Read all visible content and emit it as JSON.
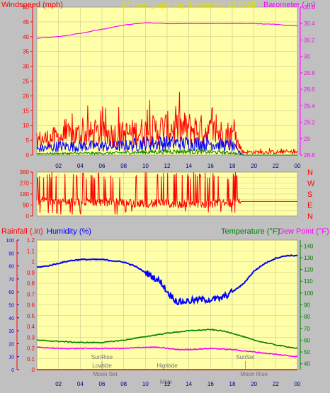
{
  "header": {
    "left_label": "Windspeed (mph)",
    "center_label": "24 hour graph day   September 13 2019",
    "right_label": "Barometer ( in)"
  },
  "colors": {
    "plot_bg": "#ffffa8",
    "grid": "#c8c890",
    "axis_red": "#ff0000",
    "magenta": "#ff00ff",
    "blue": "#0000ff",
    "green": "#008000",
    "yellow_text": "#e0e000"
  },
  "mid_labels": {
    "compass": [
      "N",
      "W",
      "S",
      "E",
      "N"
    ]
  },
  "bottom_header": {
    "rainfall": "Rainfall (.in)",
    "humidity": "Humidity (%)",
    "temperature": "Temperature (°F)",
    "dewpoint": "Dew Point (°F)"
  },
  "annotations": [
    {
      "text": "SunRise",
      "hour": 6.0,
      "row": 0
    },
    {
      "text": "Lowtide",
      "hour": 6.0,
      "row": 1
    },
    {
      "text": "Moon Set",
      "hour": 6.3,
      "row": 2
    },
    {
      "text": "Hightide",
      "hour": 12.0,
      "row": 1
    },
    {
      "text": "Mide",
      "hour": 11.9,
      "row": 3
    },
    {
      "text": "SunSet",
      "hour": 19.2,
      "row": 0
    },
    {
      "text": "Moon Rise",
      "hour": 20.0,
      "row": 2
    }
  ],
  "chart_data": [
    {
      "type": "line",
      "title": "24 hour graph day   September 13 2019",
      "x_ticks": [
        "02",
        "04",
        "06",
        "08",
        "10",
        "12",
        "14",
        "16",
        "18",
        "20",
        "22",
        "00"
      ],
      "xlim": [
        0,
        24
      ],
      "left_axis": {
        "label": "Windspeed (mph)",
        "ylim": [
          0,
          50
        ],
        "ticks": [
          0,
          5,
          10,
          15,
          20,
          25,
          30,
          35,
          40,
          45,
          50
        ]
      },
      "right_axis": {
        "label": "Barometer ( in)",
        "ylim": [
          28.8,
          30.6
        ],
        "ticks": [
          "28.8",
          "29",
          "29.2",
          "29.4",
          "29.6",
          "29.8",
          "30",
          "30.2",
          "30.4",
          "30.6"
        ]
      },
      "series": [
        {
          "name": "Barometer",
          "axis": "right",
          "color": "#ff00ff",
          "x": [
            0,
            2,
            4,
            6,
            8,
            10,
            12,
            14,
            16,
            18,
            20,
            22,
            24
          ],
          "values": [
            30.22,
            30.24,
            30.28,
            30.33,
            30.38,
            30.41,
            30.4,
            30.4,
            30.4,
            30.4,
            30.4,
            30.39,
            30.37
          ]
        },
        {
          "name": "Wind gust",
          "axis": "left",
          "color": "#ff0000",
          "style": "noisy",
          "x": [
            0,
            2,
            4,
            6,
            8,
            10,
            12,
            14,
            16,
            18,
            19,
            20,
            22,
            24
          ],
          "values": [
            5,
            6,
            7,
            7,
            7,
            8,
            9,
            9,
            8,
            7,
            1,
            1,
            1,
            1
          ]
        },
        {
          "name": "Wind speed",
          "axis": "left",
          "color": "#0000ff",
          "style": "noisy",
          "x": [
            0,
            2,
            4,
            6,
            8,
            10,
            12,
            14,
            16,
            18,
            19,
            20,
            22,
            24
          ],
          "values": [
            2,
            3,
            3,
            3,
            3,
            4,
            4,
            4,
            4,
            3,
            0,
            0,
            0,
            0
          ]
        },
        {
          "name": "Wind low",
          "axis": "left",
          "color": "#008000",
          "style": "noisy",
          "x": [
            0,
            2,
            4,
            6,
            8,
            10,
            12,
            14,
            16,
            18,
            19,
            20,
            22,
            24
          ],
          "values": [
            0.5,
            0.5,
            0.6,
            0.6,
            0.8,
            1,
            1.2,
            1.2,
            1,
            0.8,
            0,
            0,
            0,
            0
          ]
        }
      ]
    },
    {
      "type": "line",
      "title": "",
      "x_ticks": [],
      "xlim": [
        0,
        24
      ],
      "left_axis": {
        "label": "",
        "ylim": [
          0,
          360
        ],
        "ticks": [
          0,
          45,
          90,
          135,
          180,
          225,
          270,
          315,
          360
        ]
      },
      "right_axis": {
        "label": "",
        "ticks": [
          "N",
          "W",
          "S",
          "E",
          "N"
        ]
      },
      "series": [
        {
          "name": "Wind direction",
          "color": "#ff0000",
          "style": "direction",
          "x": [
            0,
            2,
            4,
            6,
            8,
            10,
            12,
            14,
            16,
            18,
            19,
            20,
            22,
            24
          ],
          "values": [
            130,
            120,
            110,
            115,
            110,
            105,
            100,
            95,
            100,
            110,
            120,
            120,
            120,
            120
          ]
        }
      ]
    },
    {
      "type": "line",
      "title": "",
      "x_ticks": [
        "02",
        "04",
        "06",
        "08",
        "10",
        "12",
        "14",
        "16",
        "18",
        "20",
        "22",
        "00"
      ],
      "xlim": [
        0,
        24
      ],
      "left_axis": {
        "label": "Rainfall (.in)",
        "ylim": [
          0,
          1.2
        ],
        "ticks": [
          "0",
          "0.1",
          "0.2",
          "0.3",
          "0.4",
          "0.5",
          "0.6",
          "0.7",
          "0.8",
          "0.9",
          "1",
          "1.1",
          "1.2"
        ]
      },
      "left_axis_2": {
        "label": "Humidity (%)",
        "ylim": [
          0,
          100
        ],
        "ticks": [
          0,
          10,
          20,
          30,
          40,
          50,
          60,
          70,
          80,
          90,
          100
        ]
      },
      "right_axis": {
        "label": "Temperature (°F)",
        "ylim": [
          35,
          145
        ],
        "ticks": [
          40,
          50,
          60,
          70,
          80,
          90,
          100,
          110,
          120,
          130,
          140
        ]
      },
      "series": [
        {
          "name": "Humidity",
          "axis": "left2",
          "color": "#0000ff",
          "x": [
            0,
            1,
            2,
            3,
            4,
            5,
            6,
            7,
            8,
            9,
            10,
            11,
            11.5,
            12,
            13,
            14,
            15,
            16,
            17,
            18,
            19,
            20,
            21,
            22,
            23,
            24
          ],
          "values": [
            79,
            80,
            82,
            84,
            85,
            85,
            85,
            84,
            83,
            80,
            75,
            70,
            67,
            60,
            52,
            53,
            54,
            54,
            55,
            60,
            66,
            76,
            82,
            86,
            88,
            88
          ]
        },
        {
          "name": "Temperature",
          "axis": "right",
          "color": "#008000",
          "x": [
            0,
            2,
            4,
            6,
            8,
            10,
            12,
            14,
            16,
            17,
            18,
            20,
            22,
            24
          ],
          "values": [
            60,
            59,
            58,
            58,
            60,
            63,
            66,
            68,
            69,
            68,
            66,
            60,
            56,
            53
          ]
        },
        {
          "name": "Dew Point",
          "axis": "right",
          "color": "#ff00ff",
          "x": [
            0,
            2,
            4,
            6,
            8,
            10,
            11,
            12,
            13,
            14,
            16,
            18,
            20,
            22,
            24
          ],
          "values": [
            54,
            53,
            53,
            53,
            53,
            54,
            54,
            53,
            52,
            52,
            53,
            52,
            50,
            48,
            46
          ]
        },
        {
          "name": "Rainfall",
          "axis": "left",
          "color": "#ff0000",
          "x": [
            0,
            24
          ],
          "values": [
            0,
            0
          ]
        }
      ]
    }
  ]
}
